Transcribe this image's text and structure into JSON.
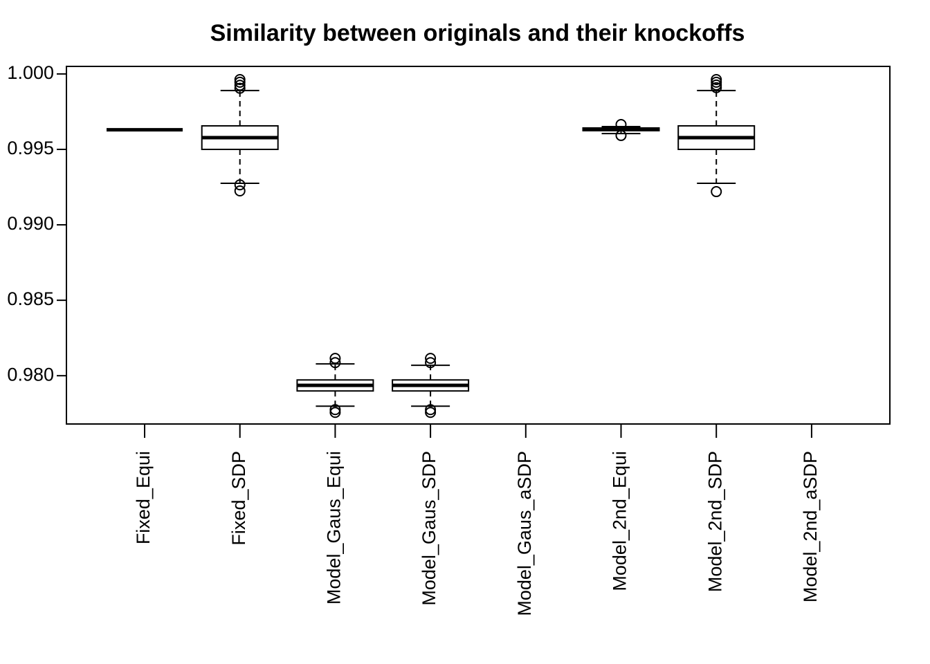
{
  "chart_data": {
    "type": "box",
    "title": "Similarity between originals and their knockoffs",
    "categories": [
      "Fixed_Equi",
      "Fixed_SDP",
      "Model_Gaus_Equi",
      "Model_Gaus_SDP",
      "Model_Gaus_aSDP",
      "Model_2nd_Equi",
      "Model_2nd_SDP",
      "Model_2nd_aSDP"
    ],
    "boxes": [
      {
        "low": 0.9963,
        "q1": 0.9963,
        "median": 0.9963,
        "q3": 0.9963,
        "high": 0.9963,
        "outliers": []
      },
      {
        "low": 0.99275,
        "q1": 0.995,
        "median": 0.99578,
        "q3": 0.99656,
        "high": 0.9989,
        "outliers": [
          0.99963,
          0.99945,
          0.99925,
          0.99905,
          0.99265,
          0.99225
        ]
      },
      {
        "low": 0.97798,
        "q1": 0.97899,
        "median": 0.97936,
        "q3": 0.97972,
        "high": 0.98078,
        "outliers": [
          0.98115,
          0.98087,
          0.97775,
          0.97757
        ]
      },
      {
        "low": 0.97798,
        "q1": 0.97899,
        "median": 0.97936,
        "q3": 0.97972,
        "high": 0.98069,
        "outliers": [
          0.98115,
          0.98087,
          0.97775,
          0.97757
        ]
      },
      null,
      {
        "low": 0.99605,
        "q1": 0.99624,
        "median": 0.99633,
        "q3": 0.99642,
        "high": 0.99651,
        "outliers": [
          0.99665,
          0.99592
        ]
      },
      {
        "low": 0.99275,
        "q1": 0.995,
        "median": 0.99578,
        "q3": 0.99656,
        "high": 0.9989,
        "outliers": [
          0.99963,
          0.99945,
          0.99927,
          0.99909,
          0.9922
        ]
      },
      null
    ],
    "ylim": [
      0.9768,
      1.0005
    ],
    "yticks": [
      {
        "value": 0.98,
        "label": "0.980"
      },
      {
        "value": 0.985,
        "label": "0.985"
      },
      {
        "value": 0.99,
        "label": "0.990"
      },
      {
        "value": 0.995,
        "label": "0.995"
      },
      {
        "value": 1.0,
        "label": "1.000"
      }
    ],
    "color": "#000000"
  }
}
